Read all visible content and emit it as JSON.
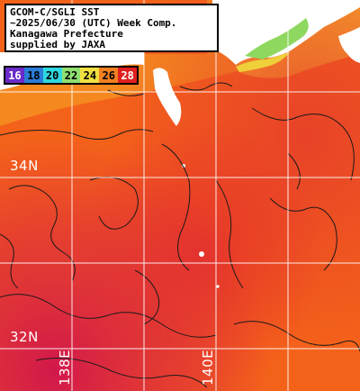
{
  "title": {
    "line1": "GCOM-C/SGLI SST",
    "line2": "~2025/06/30 (UTC) Week Comp.",
    "line3": "Kanagawa Prefecture",
    "line4": "supplied by JAXA"
  },
  "legend": [
    {
      "label": "16",
      "color": "#6a2cc8",
      "text_color": "#ffffff"
    },
    {
      "label": "18",
      "color": "#2a7cd6",
      "text_color": "#000000"
    },
    {
      "label": "20",
      "color": "#2fd8e0",
      "text_color": "#000000"
    },
    {
      "label": "22",
      "color": "#8fe070",
      "text_color": "#000000"
    },
    {
      "label": "24",
      "color": "#f0e040",
      "text_color": "#000000"
    },
    {
      "label": "26",
      "color": "#f08020",
      "text_color": "#000000"
    },
    {
      "label": "28",
      "color": "#e02020",
      "text_color": "#ffffff"
    }
  ],
  "grid_labels": {
    "lat_34": "34N",
    "lat_32": "32N",
    "lon_138": "138E",
    "lon_140": "140E"
  },
  "colors": {
    "sea_warm": "#f4621a",
    "sea_hot": "#e8302a",
    "sea_hottest": "#d41a48",
    "sea_cool": "#f59a26",
    "land": "#ffffff",
    "grid": "#ffffff",
    "contour": "#1a1a1a"
  }
}
